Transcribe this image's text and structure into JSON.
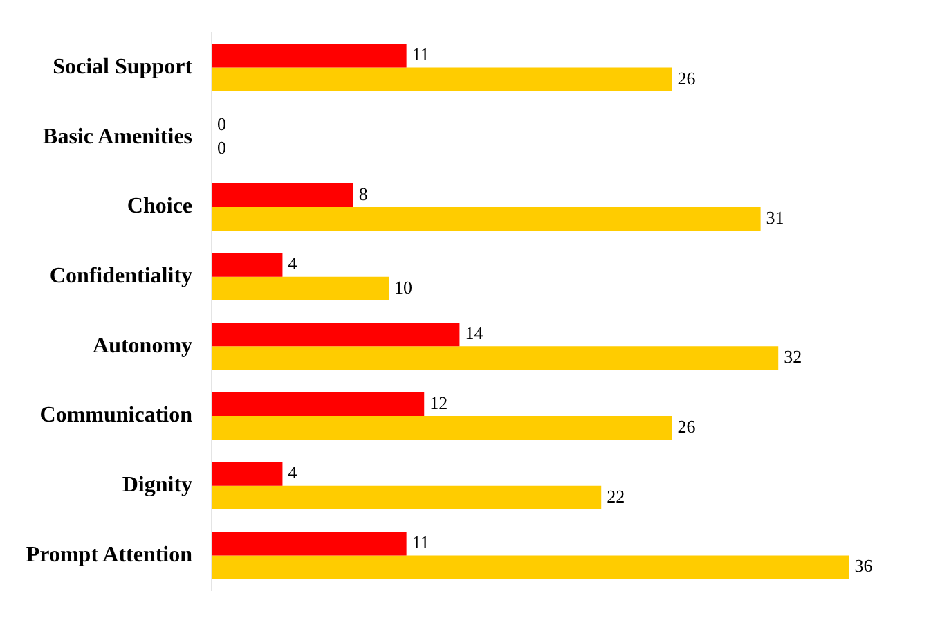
{
  "chart_data": {
    "type": "bar",
    "orientation": "horizontal",
    "categories": [
      "Social Support",
      "Basic Amenities",
      "Choice",
      "Confidentiality",
      "Autonomy",
      "Communication",
      "Dignity",
      "Prompt Attention"
    ],
    "series": [
      {
        "color": "#ff0000",
        "values": [
          11,
          0,
          8,
          4,
          14,
          12,
          4,
          11
        ]
      },
      {
        "color": "#ffcc00",
        "values": [
          26,
          0,
          31,
          10,
          32,
          26,
          22,
          36
        ]
      }
    ],
    "tick_labels": "y",
    "grid": false,
    "legend": false,
    "data_labels": true
  }
}
